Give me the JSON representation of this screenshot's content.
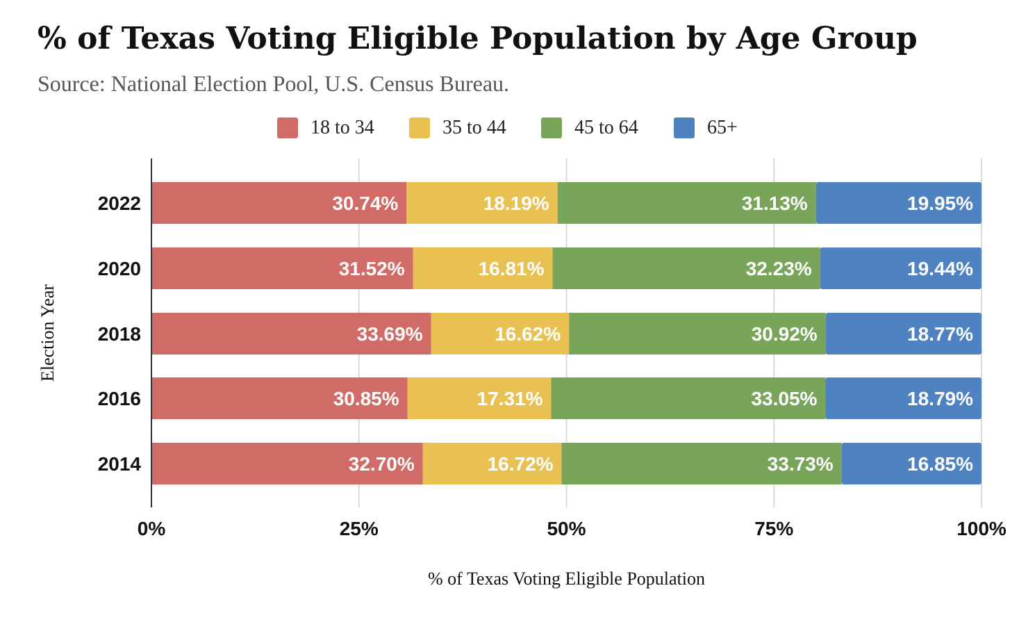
{
  "chart_data": {
    "type": "bar",
    "orientation": "horizontal",
    "stacked": true,
    "title": "% of Texas Voting Eligible Population by Age Group",
    "subtitle": "Source: National Election Pool, U.S. Census Bureau.",
    "xlabel": "% of Texas Voting Eligible Population",
    "ylabel": "Election Year",
    "xlim": [
      0,
      100
    ],
    "x_ticks": [
      "0%",
      "25%",
      "50%",
      "75%",
      "100%"
    ],
    "grid": true,
    "legend_position": "top",
    "categories": [
      "2022",
      "2020",
      "2018",
      "2016",
      "2014"
    ],
    "series": [
      {
        "name": "18 to 34",
        "color": "#d16b67",
        "values": [
          30.74,
          31.52,
          33.69,
          30.85,
          32.7
        ],
        "labels": [
          "30.74%",
          "31.52%",
          "33.69%",
          "30.85%",
          "32.70%"
        ]
      },
      {
        "name": "35 to 44",
        "color": "#e8c152",
        "values": [
          18.19,
          16.81,
          16.62,
          17.31,
          16.72
        ],
        "labels": [
          "18.19%",
          "16.81%",
          "16.62%",
          "17.31%",
          "16.72%"
        ]
      },
      {
        "name": "45 to 64",
        "color": "#78a55a",
        "values": [
          31.13,
          32.23,
          30.92,
          33.05,
          33.73
        ],
        "labels": [
          "31.13%",
          "32.23%",
          "30.92%",
          "33.05%",
          "33.73%"
        ]
      },
      {
        "name": "65+",
        "color": "#4f82c1",
        "values": [
          19.95,
          19.44,
          18.77,
          18.79,
          16.85
        ],
        "labels": [
          "19.95%",
          "19.44%",
          "18.77%",
          "18.79%",
          "16.85%"
        ]
      }
    ]
  }
}
